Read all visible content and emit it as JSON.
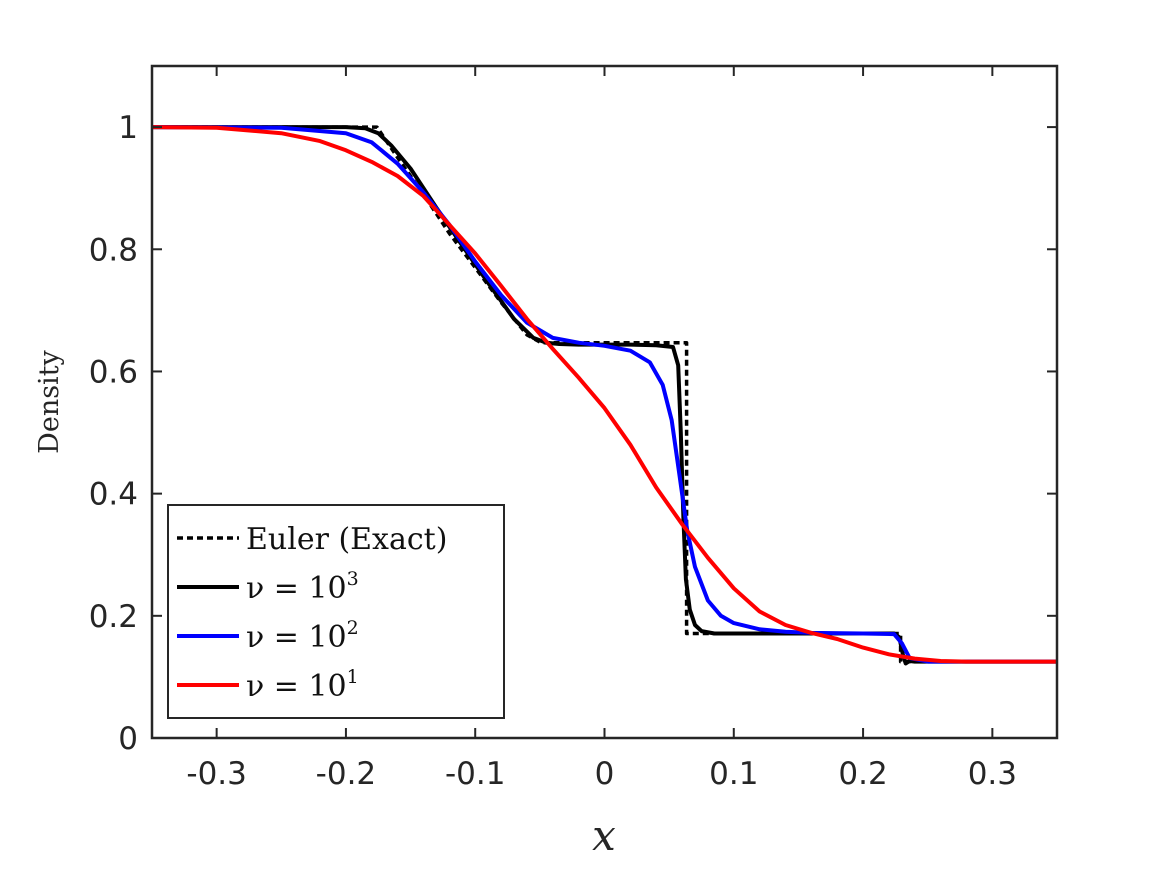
{
  "chart_data": {
    "type": "line",
    "title": "",
    "xlabel": "x",
    "ylabel": "Density",
    "xlim": [
      -0.35,
      0.35
    ],
    "ylim": [
      0,
      1.1
    ],
    "xticks": [
      -0.3,
      -0.2,
      -0.1,
      0,
      0.1,
      0.2,
      0.3
    ],
    "xtick_labels": [
      "-0.3",
      "-0.2",
      "-0.1",
      "0",
      "0.1",
      "0.2",
      "0.3"
    ],
    "yticks": [
      0,
      0.2,
      0.4,
      0.6,
      0.8,
      1
    ],
    "ytick_labels": [
      "0",
      "0.2",
      "0.4",
      "0.6",
      "0.8",
      "1"
    ],
    "grid": false,
    "legend_position": "bottom-left",
    "series": [
      {
        "name": "Euler (Exact)",
        "legend_parts": [
          "Euler (Exact)"
        ],
        "color": "#000000",
        "dash": "dotted",
        "x": [
          -0.35,
          -0.176,
          -0.16,
          -0.14,
          -0.12,
          -0.1,
          -0.08,
          -0.06,
          -0.049,
          -0.02,
          0.0,
          0.03,
          0.0635,
          0.0635,
          0.08,
          0.12,
          0.16,
          0.2,
          0.229,
          0.229,
          0.26,
          0.3,
          0.35
        ],
        "y": [
          1.0,
          1.0,
          0.95,
          0.89,
          0.826,
          0.77,
          0.713,
          0.66,
          0.647,
          0.647,
          0.647,
          0.647,
          0.647,
          0.171,
          0.171,
          0.171,
          0.171,
          0.171,
          0.171,
          0.125,
          0.125,
          0.125,
          0.125
        ]
      },
      {
        "name": "ν = 10^3",
        "legend_parts": [
          "ν = 10",
          "3"
        ],
        "color": "#000000",
        "dash": "solid",
        "x": [
          -0.35,
          -0.2,
          -0.185,
          -0.175,
          -0.165,
          -0.15,
          -0.13,
          -0.11,
          -0.09,
          -0.07,
          -0.055,
          -0.045,
          -0.035,
          -0.02,
          0.0,
          0.02,
          0.04,
          0.053,
          0.057,
          0.059,
          0.061,
          0.063,
          0.066,
          0.07,
          0.075,
          0.085,
          0.1,
          0.15,
          0.2,
          0.224,
          0.228,
          0.231,
          0.233,
          0.236,
          0.24,
          0.26,
          0.3,
          0.35
        ],
        "y": [
          1.0,
          1.0,
          0.998,
          0.99,
          0.97,
          0.932,
          0.868,
          0.806,
          0.745,
          0.686,
          0.655,
          0.647,
          0.645,
          0.644,
          0.644,
          0.644,
          0.643,
          0.64,
          0.61,
          0.5,
          0.36,
          0.26,
          0.21,
          0.185,
          0.175,
          0.171,
          0.171,
          0.171,
          0.171,
          0.171,
          0.165,
          0.135,
          0.122,
          0.126,
          0.125,
          0.125,
          0.125,
          0.125
        ]
      },
      {
        "name": "ν = 10^2",
        "legend_parts": [
          "ν = 10",
          "2"
        ],
        "color": "#0000ff",
        "dash": "solid",
        "x": [
          -0.35,
          -0.25,
          -0.2,
          -0.18,
          -0.16,
          -0.14,
          -0.12,
          -0.1,
          -0.08,
          -0.06,
          -0.04,
          -0.02,
          0.0,
          0.02,
          0.035,
          0.045,
          0.052,
          0.058,
          0.064,
          0.07,
          0.08,
          0.09,
          0.1,
          0.12,
          0.14,
          0.16,
          0.2,
          0.224,
          0.23,
          0.236,
          0.25,
          0.3,
          0.35
        ],
        "y": [
          1.0,
          0.999,
          0.99,
          0.975,
          0.94,
          0.893,
          0.84,
          0.78,
          0.725,
          0.68,
          0.655,
          0.647,
          0.642,
          0.634,
          0.615,
          0.578,
          0.52,
          0.43,
          0.34,
          0.28,
          0.225,
          0.2,
          0.188,
          0.178,
          0.174,
          0.172,
          0.171,
          0.17,
          0.155,
          0.131,
          0.125,
          0.125,
          0.125
        ]
      },
      {
        "name": "ν = 10^1",
        "legend_parts": [
          "ν = 10",
          "1"
        ],
        "color": "#ff0000",
        "dash": "solid",
        "x": [
          -0.35,
          -0.3,
          -0.25,
          -0.22,
          -0.2,
          -0.18,
          -0.16,
          -0.14,
          -0.12,
          -0.1,
          -0.08,
          -0.06,
          -0.04,
          -0.02,
          0.0,
          0.02,
          0.04,
          0.06,
          0.08,
          0.1,
          0.12,
          0.14,
          0.16,
          0.18,
          0.2,
          0.22,
          0.24,
          0.26,
          0.28,
          0.3,
          0.35
        ],
        "y": [
          1.0,
          0.999,
          0.99,
          0.977,
          0.962,
          0.943,
          0.92,
          0.887,
          0.84,
          0.793,
          0.74,
          0.686,
          0.637,
          0.59,
          0.54,
          0.48,
          0.41,
          0.35,
          0.295,
          0.245,
          0.207,
          0.185,
          0.172,
          0.162,
          0.148,
          0.137,
          0.13,
          0.126,
          0.125,
          0.125,
          0.125
        ]
      }
    ]
  }
}
